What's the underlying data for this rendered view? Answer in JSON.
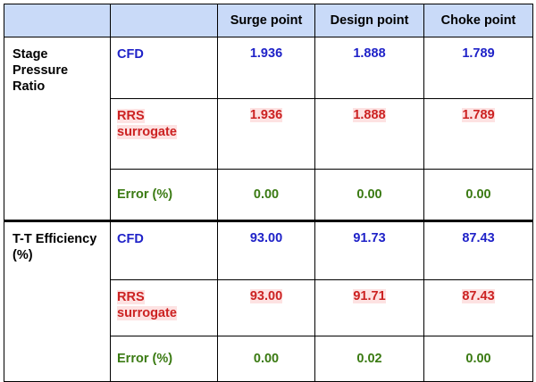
{
  "table": {
    "headers": [
      "",
      "",
      "Surge point",
      "Design point",
      "Choke point"
    ],
    "groups": [
      {
        "label": "Stage Pressure Ratio",
        "label_lines": [
          "Stage",
          "Pressure",
          "Ratio"
        ],
        "rows": [
          {
            "method": "CFD",
            "method_lines": [
              "CFD"
            ],
            "values": [
              "1.936",
              "1.888",
              "1.789"
            ]
          },
          {
            "method": "RRS surrogate",
            "method_lines": [
              "RRS",
              "surrogate"
            ],
            "values": [
              "1.936",
              "1.888",
              "1.789"
            ]
          },
          {
            "method": "Error (%)",
            "method_lines": [
              "Error (%)"
            ],
            "values": [
              "0.00",
              "0.00",
              "0.00"
            ]
          }
        ]
      },
      {
        "label": "T-T Efficiency (%)",
        "label_lines": [
          "T-T Efficiency",
          "(%)"
        ],
        "rows": [
          {
            "method": "CFD",
            "method_lines": [
              "CFD"
            ],
            "values": [
              "93.00",
              "91.73",
              "87.43"
            ]
          },
          {
            "method": "RRS surrogate",
            "method_lines": [
              "RRS",
              "surrogate"
            ],
            "values": [
              "93.00",
              "91.71",
              "87.43"
            ]
          },
          {
            "method": "Error (%)",
            "method_lines": [
              "Error (%)"
            ],
            "values": [
              "0.00",
              "0.02",
              "0.00"
            ]
          }
        ]
      }
    ]
  },
  "colors": {
    "header_bg": "#c9daf8",
    "cfd_text": "#1f22c8",
    "rrs_text": "#cc2222",
    "rrs_highlight": "#fde2e2",
    "error_text": "#3a7a12"
  }
}
